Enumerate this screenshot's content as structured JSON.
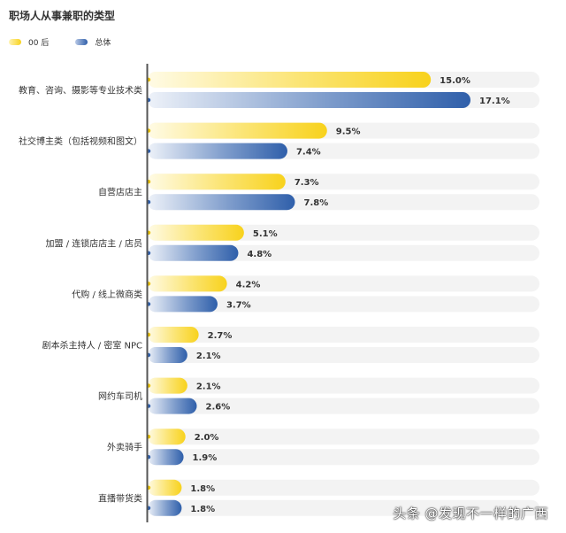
{
  "chart_data": {
    "type": "bar",
    "orientation": "horizontal",
    "title": "职场人从事兼职的类型",
    "categories": [
      "教育、咨询、摄影等专业技术类",
      "社交博主类（包括视频和图文）",
      "自营店店主",
      "加盟 / 连锁店店主 / 店员",
      "代购 / 线上微商类",
      "剧本杀主持人 / 密室 NPC",
      "网约车司机",
      "外卖骑手",
      "直播带货类"
    ],
    "series": [
      {
        "name": "00 后",
        "color": "#F8D21C",
        "values": [
          15.0,
          9.5,
          7.3,
          5.1,
          4.2,
          2.7,
          2.1,
          2.0,
          1.8
        ],
        "labels": [
          "15.0%",
          "9.5%",
          "7.3%",
          "5.1%",
          "4.2%",
          "2.7%",
          "2.1%",
          "2.0%",
          "1.8%"
        ]
      },
      {
        "name": "总体",
        "color": "#2F5FAA",
        "values": [
          17.1,
          7.4,
          7.8,
          4.8,
          3.7,
          2.1,
          2.6,
          1.9,
          1.8
        ],
        "labels": [
          "17.1%",
          "7.4%",
          "7.8%",
          "4.8%",
          "3.7%",
          "2.1%",
          "2.6%",
          "1.9%",
          "1.8%"
        ]
      }
    ],
    "unit": "%",
    "legend_position": "top-left",
    "grid": false
  },
  "watermark": "头条 @发现不一样的广西"
}
